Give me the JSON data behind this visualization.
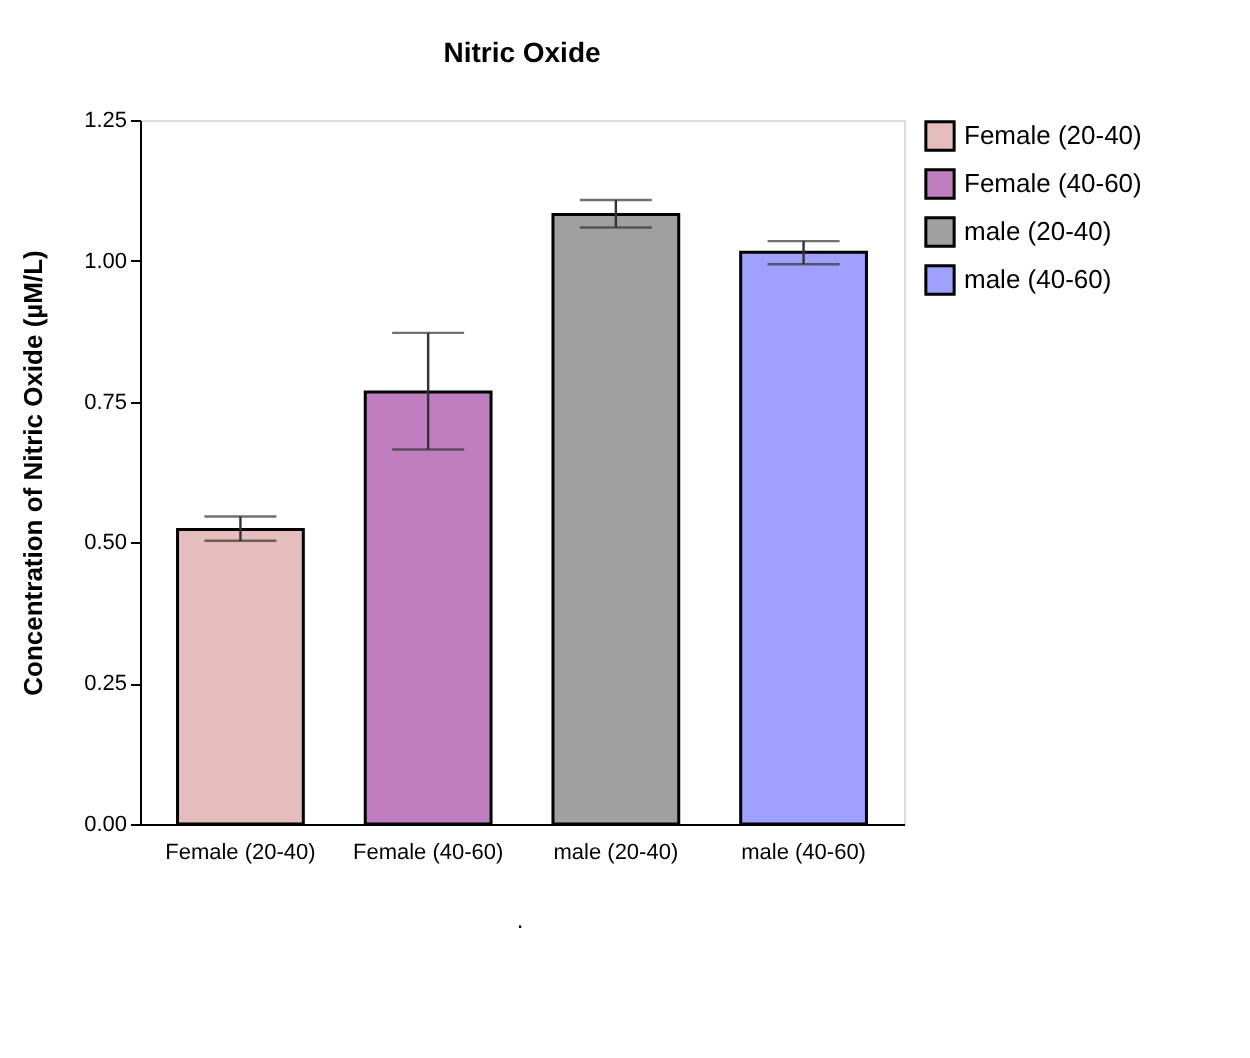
{
  "chart_data": {
    "type": "bar",
    "title": "Nitric Oxide",
    "ylabel": "Concentration of Nitric Oxide  (µM/L)",
    "categories": [
      "Female (20-40)",
      "Female (40-60)",
      "male (20-40)",
      "male (40-60)"
    ],
    "series": [
      {
        "name": "Female (20-40)",
        "color": "#e5bdbd",
        "values": [
          0.523,
          null,
          null,
          null
        ],
        "errors": [
          [
            0.503,
            0.546
          ],
          null,
          null,
          null
        ]
      },
      {
        "name": "Female (40-60)",
        "color": "#bf7fbf",
        "values": [
          null,
          0.767,
          null,
          null
        ],
        "errors": [
          null,
          [
            0.665,
            0.872
          ],
          null,
          null
        ]
      },
      {
        "name": "male (20-40)",
        "color": "#a0a0a0",
        "values": [
          null,
          null,
          1.082,
          null
        ],
        "errors": [
          null,
          null,
          [
            1.059,
            1.108
          ],
          null
        ]
      },
      {
        "name": "male (40-60)",
        "color": "#a0a0ff",
        "values": [
          null,
          null,
          null,
          1.015
        ],
        "errors": [
          null,
          null,
          null,
          [
            0.994,
            1.035
          ]
        ]
      }
    ],
    "ylim": [
      0,
      1.25
    ],
    "yticks": [
      {
        "value": 0,
        "label": "0.00"
      },
      {
        "value": 0.25,
        "label": "0.25"
      },
      {
        "value": 0.5,
        "label": "0.50"
      },
      {
        "value": 0.75,
        "label": "0.75"
      },
      {
        "value": 1,
        "label": "1.00"
      },
      {
        "value": 1.25,
        "label": "1.25"
      }
    ],
    "grid": false,
    "legend": "top right",
    "annotations": [
      "."
    ]
  }
}
